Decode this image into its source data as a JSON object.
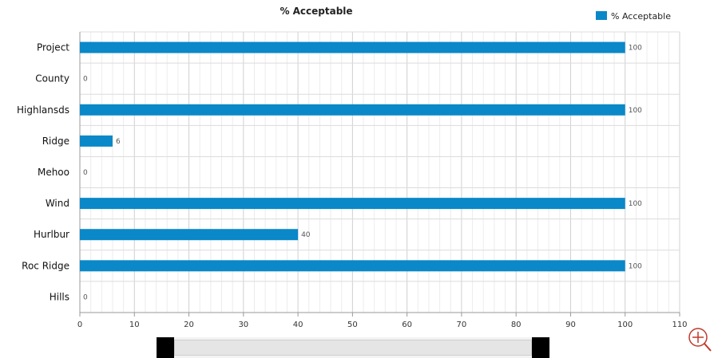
{
  "chart_data": {
    "type": "bar",
    "orientation": "horizontal",
    "title": "% Acceptable",
    "categories": [
      "Project",
      "County",
      "Highlansds",
      "Ridge",
      "Mehoo",
      "Wind",
      "Hurlbur",
      "Roc Ridge",
      "Hills"
    ],
    "series": [
      {
        "name": "% Acceptable",
        "values": [
          100,
          0,
          100,
          6,
          0,
          100,
          40,
          100,
          0
        ]
      }
    ],
    "xlim": [
      0,
      110
    ],
    "xticks": [
      0,
      10,
      20,
      30,
      40,
      50,
      60,
      70,
      80,
      90,
      100,
      110
    ],
    "grid": true,
    "legend_position": "top-right",
    "bar_color": "#0a88c8"
  },
  "controls": {
    "zoom_icon": "zoom-in-icon"
  }
}
